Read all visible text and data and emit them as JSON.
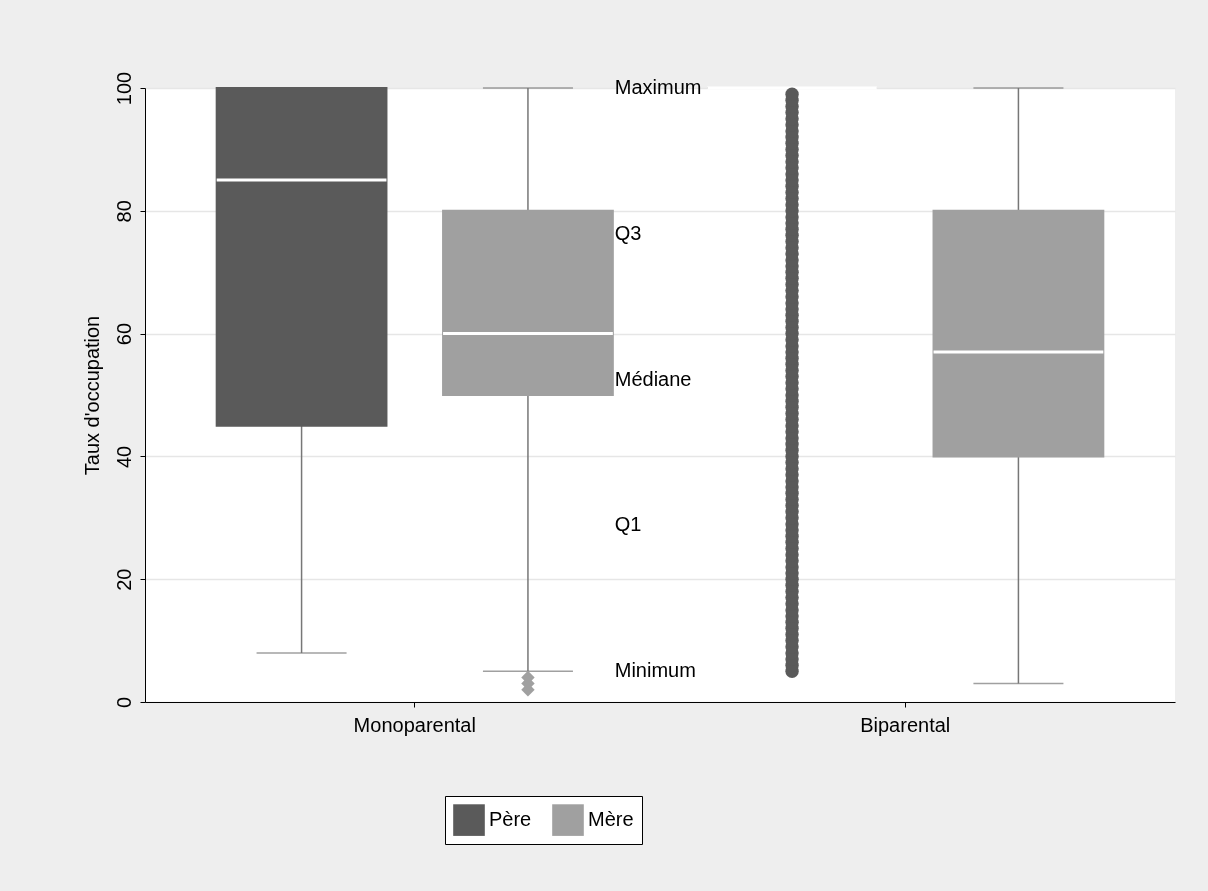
{
  "chart_data": {
    "type": "box",
    "ylabel": "Taux d'occupation",
    "categories": [
      "Monoparental",
      "Biparental"
    ],
    "series": [
      {
        "name": "Père",
        "color": "#5a5a5a",
        "marker": "circle",
        "boxes": [
          {
            "low": 8,
            "q1": 45,
            "median": 85,
            "q3": 100,
            "high": 100
          },
          {
            "low": 100,
            "q1": 100,
            "median": 100,
            "q3": 100,
            "high": 100,
            "outliers": [
              5,
              6,
              7,
              8,
              9,
              10,
              11,
              12,
              13,
              14,
              15,
              16,
              17,
              18,
              19,
              20,
              21,
              22,
              23,
              24,
              25,
              26,
              27,
              28,
              29,
              30,
              31,
              32,
              33,
              34,
              35,
              36,
              37,
              38,
              39,
              40,
              41,
              42,
              43,
              44,
              45,
              46,
              47,
              48,
              49,
              50,
              51,
              52,
              53,
              54,
              55,
              56,
              57,
              58,
              59,
              60,
              61,
              62,
              63,
              64,
              65,
              66,
              67,
              68,
              69,
              70,
              71,
              72,
              73,
              74,
              75,
              76,
              77,
              78,
              79,
              80,
              81,
              82,
              83,
              84,
              85,
              86,
              87,
              88,
              89,
              90,
              91,
              92,
              93,
              94,
              95,
              96,
              97,
              98,
              99
            ]
          }
        ]
      },
      {
        "name": "Mère",
        "color": "#a0a0a0",
        "marker": "diamond",
        "boxes": [
          {
            "low": 5,
            "q1": 50,
            "median": 60,
            "q3": 80,
            "high": 100,
            "outliers": [
              2,
              3,
              4
            ]
          },
          {
            "low": 3,
            "q1": 40,
            "median": 57,
            "q3": 80,
            "high": 100
          }
        ]
      }
    ],
    "annotations": [
      "Maximum",
      "Q3",
      "Médiane",
      "Q1",
      "Minimum"
    ],
    "ylim": [
      0,
      100
    ],
    "yticks": [
      0,
      20,
      40,
      60,
      80,
      100
    ],
    "grid": "y",
    "legend": "bottom"
  }
}
